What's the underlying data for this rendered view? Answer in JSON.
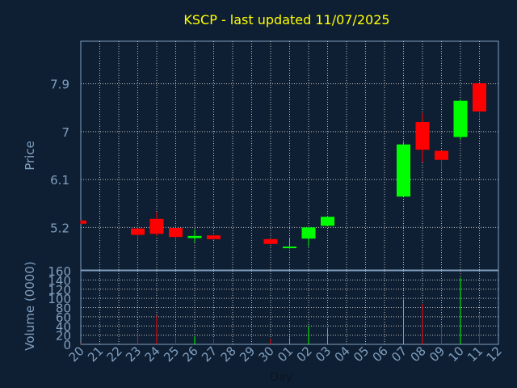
{
  "chart_data": [
    {
      "type": "candlestick",
      "title": "KSCP - last updated 11/07/2025",
      "xlabel": "",
      "ylabel": "Price",
      "ylim": [
        4.4,
        8.7
      ],
      "yticks": [
        5.2,
        6.1,
        7,
        7.9
      ],
      "ytick_labels": [
        "5.2",
        "6.1",
        "7",
        "7.9"
      ],
      "grid": true,
      "x": [
        "20",
        "21",
        "22",
        "23",
        "24",
        "25",
        "26",
        "27",
        "28",
        "29",
        "30",
        "01",
        "02",
        "03",
        "04",
        "05",
        "06",
        "07",
        "08",
        "09",
        "10",
        "11",
        "12"
      ],
      "candles": [
        {
          "x": "20",
          "open": 5.33,
          "high": 5.33,
          "low": 5.27,
          "close": 5.27
        },
        {
          "x": "23",
          "open": 5.18,
          "high": 5.18,
          "low": 4.95,
          "close": 5.06
        },
        {
          "x": "24",
          "open": 5.36,
          "high": 5.49,
          "low": 5.04,
          "close": 5.08
        },
        {
          "x": "25",
          "open": 5.19,
          "high": 5.19,
          "low": 4.95,
          "close": 5.02
        },
        {
          "x": "26",
          "open": 5.0,
          "high": 5.16,
          "low": 4.92,
          "close": 5.04
        },
        {
          "x": "27",
          "open": 5.05,
          "high": 5.05,
          "low": 4.97,
          "close": 4.98
        },
        {
          "x": "30",
          "open": 4.98,
          "high": 4.98,
          "low": 4.88,
          "close": 4.89
        },
        {
          "x": "01",
          "open": 4.82,
          "high": 5.0,
          "low": 4.8,
          "close": 4.84
        },
        {
          "x": "02",
          "open": 4.99,
          "high": 5.2,
          "low": 4.84,
          "close": 5.2
        },
        {
          "x": "03",
          "open": 5.23,
          "high": 5.42,
          "low": 5.23,
          "close": 5.4
        },
        {
          "x": "07",
          "open": 5.78,
          "high": 6.8,
          "low": 5.78,
          "close": 6.76
        },
        {
          "x": "08",
          "open": 7.18,
          "high": 7.35,
          "low": 6.42,
          "close": 6.66
        },
        {
          "x": "09",
          "open": 6.64,
          "high": 6.64,
          "low": 6.28,
          "close": 6.47
        },
        {
          "x": "10",
          "open": 6.9,
          "high": 7.6,
          "low": 6.85,
          "close": 7.58
        },
        {
          "x": "11",
          "open": 7.91,
          "high": 7.91,
          "low": 7.25,
          "close": 7.38
        }
      ]
    },
    {
      "type": "bar",
      "xlabel": "Day",
      "ylabel": "Volume (0000)",
      "ylim": [
        0,
        160
      ],
      "yticks": [
        0,
        20,
        40,
        60,
        80,
        100,
        120,
        140,
        160
      ],
      "ytick_labels": [
        "0",
        "20",
        "40",
        "60",
        "80",
        "100",
        "120",
        "140",
        "160"
      ],
      "x": [
        "20",
        "21",
        "22",
        "23",
        "24",
        "25",
        "26",
        "27",
        "28",
        "29",
        "30",
        "01",
        "02",
        "03",
        "04",
        "05",
        "06",
        "07",
        "08",
        "09",
        "10",
        "11",
        "12"
      ],
      "bars": [
        {
          "x": "20",
          "value": 2,
          "direction": "down"
        },
        {
          "x": "23",
          "value": 25,
          "direction": "down"
        },
        {
          "x": "24",
          "value": 63,
          "direction": "down"
        },
        {
          "x": "25",
          "value": 18,
          "direction": "down"
        },
        {
          "x": "26",
          "value": 17,
          "direction": "up"
        },
        {
          "x": "27",
          "value": 13,
          "direction": "down"
        },
        {
          "x": "30",
          "value": 12,
          "direction": "down"
        },
        {
          "x": "01",
          "value": 15,
          "direction": "up"
        },
        {
          "x": "02",
          "value": 40,
          "direction": "up"
        },
        {
          "x": "03",
          "value": 35,
          "direction": "up"
        },
        {
          "x": "07",
          "value": 98,
          "direction": "up"
        },
        {
          "x": "08",
          "value": 88,
          "direction": "down"
        },
        {
          "x": "09",
          "value": 35,
          "direction": "down"
        },
        {
          "x": "10",
          "value": 145,
          "direction": "up"
        },
        {
          "x": "11",
          "value": 68,
          "direction": "down"
        }
      ]
    }
  ],
  "colors": {
    "background": "#0f1f33",
    "up": "#00ff00",
    "down": "#ff0000",
    "grid": "#c0c0c0",
    "axis": "#7f9fbf",
    "title": "#ffff00"
  }
}
